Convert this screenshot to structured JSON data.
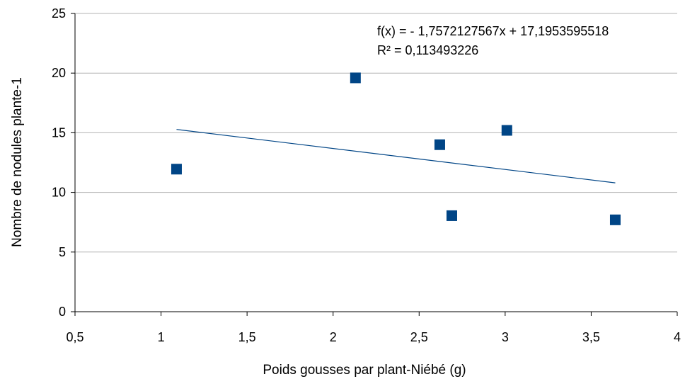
{
  "chart_data": {
    "type": "scatter",
    "title": "",
    "xlabel": "Poids gousses par plant-Niébé (g)",
    "ylabel": "Nombre de nodules plante-1",
    "xlim": [
      0.5,
      4
    ],
    "ylim": [
      0,
      25
    ],
    "x_ticks": [
      0.5,
      1,
      1.5,
      2,
      2.5,
      3,
      3.5,
      4
    ],
    "x_tick_labels": [
      "0,5",
      "1",
      "1,5",
      "2",
      "2,5",
      "3",
      "3,5",
      "4"
    ],
    "y_ticks": [
      0,
      5,
      10,
      15,
      20,
      25
    ],
    "y_tick_labels": [
      "0",
      "5",
      "10",
      "15",
      "20",
      "25"
    ],
    "grid": true,
    "legend": "none",
    "series": [
      {
        "color": "#004586",
        "points": [
          {
            "x": 1.09,
            "y": 11.95
          },
          {
            "x": 2.13,
            "y": 19.6
          },
          {
            "x": 2.62,
            "y": 14.0
          },
          {
            "x": 2.69,
            "y": 8.05
          },
          {
            "x": 3.01,
            "y": 15.2
          },
          {
            "x": 3.64,
            "y": 7.7
          }
        ]
      }
    ],
    "trendline": {
      "type": "linear",
      "slope": -1.7572127567,
      "intercept": 17.1953595518,
      "x_start": 1.09,
      "x_end": 3.64,
      "color": "#004586",
      "equation_text": "f(x) =  - 1,7572127567x + 17,1953595518",
      "r2_text": "R² = 0,113493226"
    }
  }
}
